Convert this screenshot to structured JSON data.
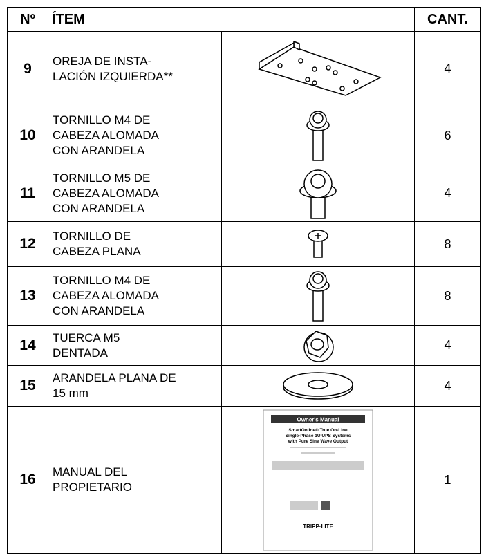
{
  "table": {
    "header": [
      "Nº",
      "ÍTEM",
      "CANT."
    ],
    "rows": [
      {
        "number": "9",
        "item": [
          "OREJA DE INSTA-",
          "LACIÓN IZQUIERDA**"
        ],
        "qty": "4"
      },
      {
        "number": "10",
        "item": [
          "TORNILLO M4 DE",
          "CABEZA ALOMADA",
          "CON ARANDELA"
        ],
        "qty": "6"
      },
      {
        "number": "11",
        "item": [
          "TORNILLO M5 DE",
          "CABEZA ALOMADA",
          "CON ARANDELA"
        ],
        "qty": "4"
      },
      {
        "number": "12",
        "item": [
          "TORNILLO DE",
          "CABEZA PLANA"
        ],
        "qty": "8"
      },
      {
        "number": "13",
        "item": [
          "TORNILLO M4 DE",
          "CABEZA ALOMADA",
          "CON ARANDELA"
        ],
        "qty": "8"
      },
      {
        "number": "14",
        "item": [
          "TUERCA M5",
          "DENTADA"
        ],
        "qty": "4"
      },
      {
        "number": "15",
        "item": [
          "ARANDELA PLANA DE",
          "15 mm"
        ],
        "qty": "4"
      },
      {
        "number": "16",
        "item": [
          "MANUAL DEL",
          "PROPIETARIO"
        ],
        "qty": "1"
      }
    ]
  },
  "manual": {
    "heading": "Owner's Manual",
    "title": [
      "SmartOnline® True On-Line",
      "Single-Phase 1U UPS Systems",
      "with Pure Sine Wave Output"
    ],
    "brand": "TRIPP·LITE"
  }
}
